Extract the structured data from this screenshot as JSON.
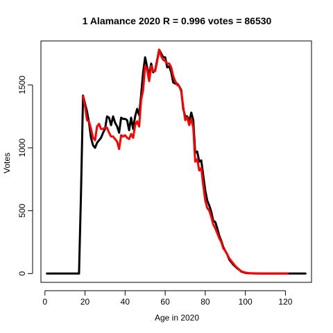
{
  "chart_data": {
    "type": "line",
    "title": "1 Alamance 2020 R = 0.996 votes = 86530",
    "xlabel": "Age in 2020",
    "ylabel": "Votes",
    "xlim": [
      -2,
      133
    ],
    "ylim": [
      -70,
      1850
    ],
    "x_ticks": [
      0,
      20,
      40,
      60,
      80,
      100,
      120
    ],
    "y_ticks": [
      0,
      500,
      1000,
      1500
    ],
    "grid": false,
    "legend": "none",
    "series": [
      {
        "color": "#000000",
        "points": [
          [
            1,
            0
          ],
          [
            10,
            0
          ],
          [
            17,
            0
          ],
          [
            18,
            650
          ],
          [
            19,
            1415
          ],
          [
            20,
            1350
          ],
          [
            21,
            1290
          ],
          [
            22,
            1200
          ],
          [
            23,
            1080
          ],
          [
            24,
            1020
          ],
          [
            25,
            1000
          ],
          [
            26,
            1040
          ],
          [
            27,
            1060
          ],
          [
            28,
            1080
          ],
          [
            29,
            1120
          ],
          [
            30,
            1150
          ],
          [
            31,
            1250
          ],
          [
            32,
            1240
          ],
          [
            33,
            1180
          ],
          [
            34,
            1250
          ],
          [
            35,
            1200
          ],
          [
            36,
            1170
          ],
          [
            37,
            1120
          ],
          [
            38,
            1240
          ],
          [
            39,
            1230
          ],
          [
            40,
            1230
          ],
          [
            41,
            1220
          ],
          [
            42,
            1140
          ],
          [
            43,
            1240
          ],
          [
            44,
            1150
          ],
          [
            45,
            1250
          ],
          [
            46,
            1310
          ],
          [
            47,
            1260
          ],
          [
            48,
            1420
          ],
          [
            49,
            1600
          ],
          [
            50,
            1720
          ],
          [
            51,
            1640
          ],
          [
            52,
            1580
          ],
          [
            53,
            1670
          ],
          [
            54,
            1600
          ],
          [
            55,
            1620
          ],
          [
            56,
            1700
          ],
          [
            57,
            1780
          ],
          [
            58,
            1750
          ],
          [
            59,
            1720
          ],
          [
            60,
            1720
          ],
          [
            61,
            1640
          ],
          [
            62,
            1650
          ],
          [
            63,
            1600
          ],
          [
            64,
            1520
          ],
          [
            65,
            1510
          ],
          [
            66,
            1510
          ],
          [
            67,
            1490
          ],
          [
            68,
            1460
          ],
          [
            69,
            1310
          ],
          [
            70,
            1250
          ],
          [
            71,
            1250
          ],
          [
            72,
            1210
          ],
          [
            73,
            1280
          ],
          [
            74,
            1220
          ],
          [
            75,
            960
          ],
          [
            76,
            970
          ],
          [
            77,
            890
          ],
          [
            78,
            900
          ],
          [
            79,
            780
          ],
          [
            80,
            660
          ],
          [
            81,
            580
          ],
          [
            82,
            540
          ],
          [
            83,
            490
          ],
          [
            84,
            420
          ],
          [
            85,
            410
          ],
          [
            86,
            360
          ],
          [
            87,
            300
          ],
          [
            88,
            260
          ],
          [
            89,
            210
          ],
          [
            90,
            180
          ],
          [
            91,
            150
          ],
          [
            92,
            110
          ],
          [
            93,
            90
          ],
          [
            94,
            70
          ],
          [
            95,
            55
          ],
          [
            96,
            40
          ],
          [
            97,
            30
          ],
          [
            98,
            15
          ],
          [
            99,
            10
          ],
          [
            100,
            5
          ],
          [
            101,
            3
          ],
          [
            102,
            2
          ],
          [
            104,
            1
          ],
          [
            106,
            0
          ],
          [
            110,
            0
          ],
          [
            120,
            0
          ],
          [
            130,
            0
          ]
        ]
      },
      {
        "color": "#ff0000",
        "points": [
          [
            19,
            1410
          ],
          [
            20,
            1330
          ],
          [
            21,
            1220
          ],
          [
            22,
            1210
          ],
          [
            23,
            1150
          ],
          [
            24,
            1080
          ],
          [
            25,
            1060
          ],
          [
            26,
            1170
          ],
          [
            27,
            1190
          ],
          [
            28,
            1150
          ],
          [
            29,
            1150
          ],
          [
            30,
            1160
          ],
          [
            31,
            1160
          ],
          [
            32,
            1120
          ],
          [
            33,
            1090
          ],
          [
            34,
            1090
          ],
          [
            35,
            1070
          ],
          [
            36,
            1050
          ],
          [
            37,
            990
          ],
          [
            38,
            1100
          ],
          [
            39,
            1090
          ],
          [
            40,
            1100
          ],
          [
            41,
            1080
          ],
          [
            42,
            1070
          ],
          [
            43,
            1110
          ],
          [
            44,
            1080
          ],
          [
            45,
            1180
          ],
          [
            46,
            1210
          ],
          [
            47,
            1170
          ],
          [
            48,
            1380
          ],
          [
            49,
            1460
          ],
          [
            50,
            1650
          ],
          [
            51,
            1620
          ],
          [
            52,
            1530
          ],
          [
            53,
            1650
          ],
          [
            54,
            1610
          ],
          [
            55,
            1610
          ],
          [
            56,
            1690
          ],
          [
            57,
            1780
          ],
          [
            58,
            1730
          ],
          [
            59,
            1700
          ],
          [
            60,
            1690
          ],
          [
            61,
            1670
          ],
          [
            62,
            1670
          ],
          [
            63,
            1640
          ],
          [
            64,
            1570
          ],
          [
            65,
            1530
          ],
          [
            66,
            1500
          ],
          [
            67,
            1490
          ],
          [
            68,
            1450
          ],
          [
            69,
            1330
          ],
          [
            70,
            1220
          ],
          [
            71,
            1240
          ],
          [
            72,
            1180
          ],
          [
            73,
            1230
          ],
          [
            74,
            1160
          ],
          [
            75,
            890
          ],
          [
            76,
            910
          ],
          [
            77,
            820
          ],
          [
            78,
            840
          ],
          [
            79,
            700
          ],
          [
            80,
            580
          ],
          [
            81,
            520
          ],
          [
            82,
            500
          ],
          [
            83,
            450
          ],
          [
            84,
            390
          ],
          [
            85,
            360
          ],
          [
            86,
            320
          ],
          [
            87,
            280
          ],
          [
            88,
            250
          ],
          [
            89,
            200
          ],
          [
            90,
            180
          ],
          [
            91,
            150
          ],
          [
            92,
            120
          ],
          [
            93,
            100
          ],
          [
            94,
            80
          ],
          [
            95,
            60
          ],
          [
            96,
            45
          ],
          [
            97,
            30
          ],
          [
            98,
            18
          ],
          [
            99,
            12
          ],
          [
            100,
            8
          ],
          [
            101,
            5
          ],
          [
            102,
            3
          ],
          [
            104,
            2
          ],
          [
            106,
            1
          ],
          [
            108,
            0
          ],
          [
            110,
            0
          ],
          [
            112,
            0
          ],
          [
            121,
            0
          ]
        ]
      }
    ]
  }
}
